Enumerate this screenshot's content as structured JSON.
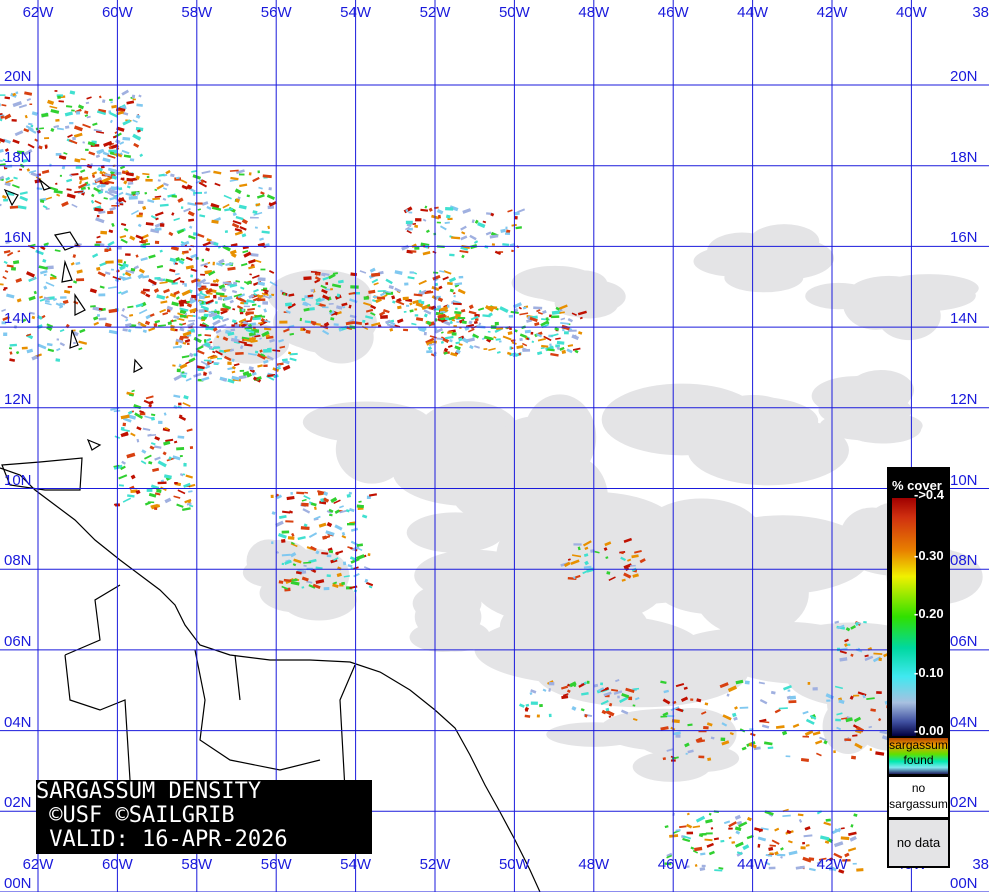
{
  "map": {
    "title_lines": [
      "SARGASSUM DENSITY",
      " ©USF ©SAILGRIB",
      " VALID: 16-APR-2026"
    ],
    "longitude_labels": [
      "62W",
      "60W",
      "58W",
      "56W",
      "54W",
      "52W",
      "50W",
      "48W",
      "46W",
      "44W",
      "42W",
      "40W",
      "38"
    ],
    "latitude_labels": [
      "20N",
      "18N",
      "16N",
      "14N",
      "12N",
      "10N",
      "08N",
      "06N",
      "04N",
      "02N",
      "00N"
    ],
    "grid_color": "#1a1adc",
    "no_data_color": "#e4e4e6"
  },
  "legend": {
    "title": "% cover",
    "ticks": [
      "->0.4",
      "-0.30",
      "-0.20",
      "-0.10",
      "-0.00"
    ],
    "found_label": "sargassum found",
    "no_sargassum_label": "no sargassum",
    "no_data_label": "no data"
  }
}
